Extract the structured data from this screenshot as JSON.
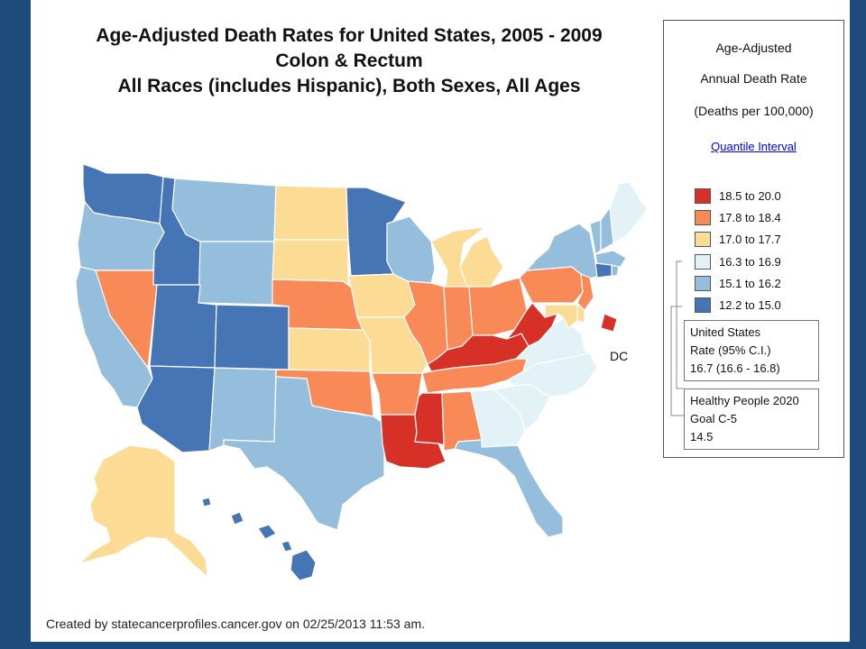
{
  "title": {
    "line1": "Age-Adjusted Death Rates for United States, 2005 - 2009",
    "line2": "Colon & Rectum",
    "line3": "All Races (includes Hispanic), Both Sexes, All Ages"
  },
  "legend": {
    "heading1": "Age-Adjusted",
    "heading2": "Annual Death Rate",
    "heading3": "(Deaths per 100,000)",
    "link": "Quantile Interval",
    "classes": [
      {
        "label": "18.5  to  20.0",
        "color": "#d73027"
      },
      {
        "label": "17.8  to  18.4",
        "color": "#f98a57"
      },
      {
        "label": "17.0  to  17.7",
        "color": "#fcdb94"
      },
      {
        "label": "16.3  to  16.9",
        "color": "#e3f2f6"
      },
      {
        "label": "15.1  to  16.2",
        "color": "#94bedb"
      },
      {
        "label": "12.2  to  15.0",
        "color": "#4575b4"
      }
    ],
    "us_rate": {
      "line1": "United States",
      "line2": "Rate (95% C.I.)",
      "line3": "16.7  (16.6 - 16.8)"
    },
    "healthy_people": {
      "line1": "Healthy People 2020",
      "line2": "Goal C-5",
      "line3": "14.5"
    }
  },
  "dc_label": "DC",
  "footer": {
    "created": "Created by statecancerprofiles.cancer.gov on 02/25/2013 11:53 am."
  },
  "state_classes": {
    "WA": 5,
    "OR": 4,
    "CA": 4,
    "NV": 1,
    "ID": 5,
    "MT": 4,
    "WY": 4,
    "UT": 5,
    "AZ": 5,
    "CO": 5,
    "NM": 4,
    "ND": 2,
    "SD": 2,
    "NE": 1,
    "KS": 2,
    "OK": 1,
    "TX": 4,
    "MN": 5,
    "IA": 2,
    "MO": 2,
    "AR": 1,
    "LA": 0,
    "WI": 4,
    "IL": 1,
    "MI": 2,
    "IN": 1,
    "OH": 1,
    "KY": 0,
    "TN": 1,
    "MS": 0,
    "AL": 1,
    "GA": 3,
    "FL": 4,
    "SC": 3,
    "NC": 3,
    "VA": 3,
    "WV": 0,
    "PA": 1,
    "NY": 4,
    "VT": 4,
    "NH": 4,
    "ME": 3,
    "MA": 4,
    "RI": 4,
    "CT": 5,
    "NJ": 1,
    "DE": 2,
    "MD": 2,
    "DC": 0,
    "AK": 2,
    "HI": 5
  }
}
